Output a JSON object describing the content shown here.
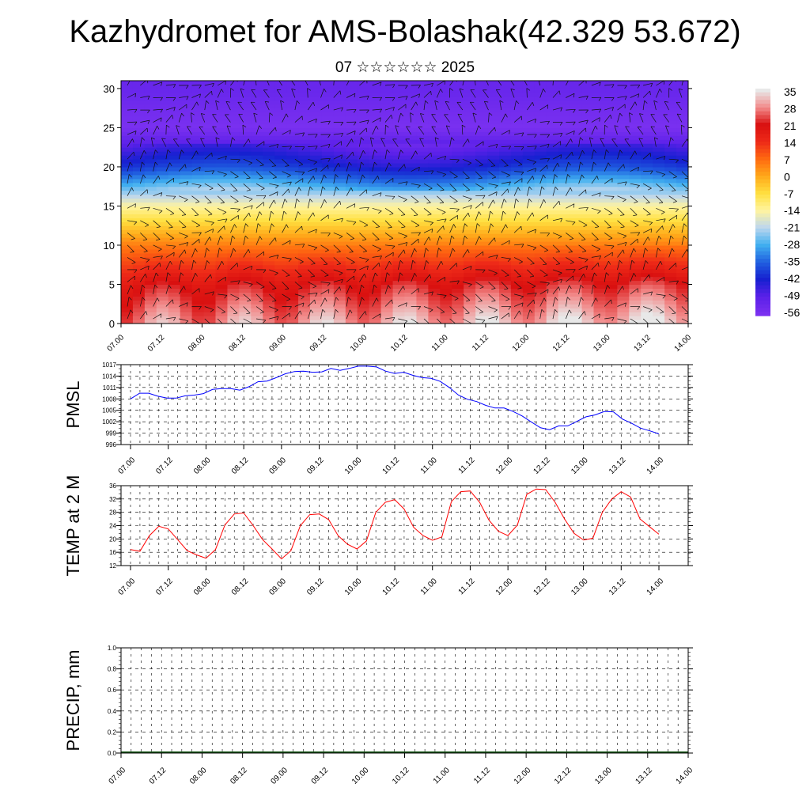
{
  "header": {
    "title": "Kazhydromet for AMS-Bolashak(42.329 53.672)",
    "subtitle": "07 ☆☆☆☆☆☆ 2025"
  },
  "chart_data": [
    {
      "type": "heatmap",
      "title": "",
      "xlabel": "",
      "ylabel": "",
      "x_ticks": [
        "07.00",
        "07.12",
        "08.00",
        "08.12",
        "09.00",
        "09.12",
        "10.00",
        "10.12",
        "11.00",
        "11.12",
        "12.00",
        "12.12",
        "13.00",
        "13.12",
        "14.00"
      ],
      "y_ticks": [
        0,
        5,
        10,
        15,
        20,
        25,
        30
      ],
      "ylim": [
        0,
        31
      ],
      "colorbar_labels": [
        35,
        28,
        21,
        14,
        7,
        0,
        -7,
        -14,
        -21,
        -28,
        -35,
        -42,
        -49,
        -56
      ],
      "color_scale": [
        "#e8e8e8",
        "#f28a8a",
        "#d91010",
        "#ee2a18",
        "#ff6a10",
        "#ffa91a",
        "#ffe040",
        "#fff4a0",
        "#bcd6ee",
        "#40b0f0",
        "#2060e0",
        "#1620d0",
        "#5a20e8",
        "#7a30f0"
      ],
      "vertical_profile_temperature": {
        "heights": [
          0,
          5,
          10,
          15,
          20,
          25,
          30
        ],
        "values": [
          28,
          20,
          5,
          -14,
          -40,
          -56,
          -52
        ]
      },
      "wind_barbs": true
    },
    {
      "type": "line",
      "ylabel": "PMSL",
      "y_ticks": [
        996,
        999,
        1002,
        1005,
        1008,
        1011,
        1014,
        1017
      ],
      "ylim": [
        996,
        1017
      ],
      "x_ticks": [
        "07.00",
        "07.12",
        "08.00",
        "08.12",
        "09.00",
        "09.12",
        "10.00",
        "10.12",
        "11.00",
        "11.12",
        "12.00",
        "12.12",
        "13.00",
        "13.12",
        "14.00"
      ],
      "color": "#0000ff",
      "values": [
        1008,
        1009.5,
        1009.5,
        1008.7,
        1008.2,
        1008.2,
        1008.8,
        1009.0,
        1009.4,
        1010.5,
        1010.7,
        1010.7,
        1010.3,
        1011.2,
        1012.5,
        1012.7,
        1013.6,
        1014.6,
        1015.2,
        1015.3,
        1015.0,
        1015.1,
        1016.0,
        1015.5,
        1016.0,
        1016.6,
        1016.6,
        1016.4,
        1015.3,
        1014.7,
        1015.0,
        1014.2,
        1013.6,
        1013.4,
        1012.6,
        1011.0,
        1009.0,
        1007.9,
        1007.3,
        1006.3,
        1005.6,
        1005.6,
        1004.7,
        1003.5,
        1001.9,
        1000.4,
        999.9,
        1000.9,
        1000.9,
        1002.1,
        1003.3,
        1003.8,
        1004.7,
        1004.6,
        1002.7,
        1001.6,
        1000.3,
        999.6,
        998.8
      ]
    },
    {
      "type": "line",
      "ylabel": "TEMP at 2 M",
      "y_ticks": [
        12,
        16,
        20,
        24,
        28,
        32,
        36
      ],
      "ylim": [
        12,
        36
      ],
      "x_ticks": [
        "07.00",
        "07.12",
        "08.00",
        "08.12",
        "09.00",
        "09.12",
        "10.00",
        "10.12",
        "11.00",
        "11.12",
        "12.00",
        "12.12",
        "13.00",
        "13.12",
        "14.00"
      ],
      "color": "#ff0000",
      "values": [
        16.8,
        16.3,
        21.0,
        23.8,
        23.0,
        19.8,
        16.5,
        15.2,
        14.2,
        16.8,
        24.2,
        27.5,
        27.8,
        24.0,
        19.8,
        17.0,
        14.0,
        16.5,
        24.0,
        27.3,
        27.5,
        25.8,
        21.0,
        18.4,
        17.0,
        19.4,
        28.0,
        31.0,
        31.8,
        29.0,
        23.5,
        21.0,
        19.6,
        20.6,
        31.2,
        34.2,
        34.4,
        31.0,
        25.6,
        22.3,
        21.0,
        24.2,
        33.4,
        35.0,
        34.8,
        31.0,
        26.0,
        21.7,
        19.7,
        20.2,
        28.0,
        32.0,
        34.2,
        32.6,
        26.0,
        23.7,
        21.4
      ]
    },
    {
      "type": "bar",
      "ylabel": "PRECIP, mm",
      "y_ticks": [
        "0.0",
        "0.2",
        "0.4",
        "0.6",
        "0.8",
        "1.0"
      ],
      "ylim": [
        0,
        1
      ],
      "x_ticks": [
        "07.00",
        "07.12",
        "08.00",
        "08.12",
        "09.00",
        "09.12",
        "10.00",
        "10.12",
        "11.00",
        "11.12",
        "12.00",
        "12.12",
        "13.00",
        "13.12",
        "14.00"
      ],
      "values": []
    }
  ]
}
